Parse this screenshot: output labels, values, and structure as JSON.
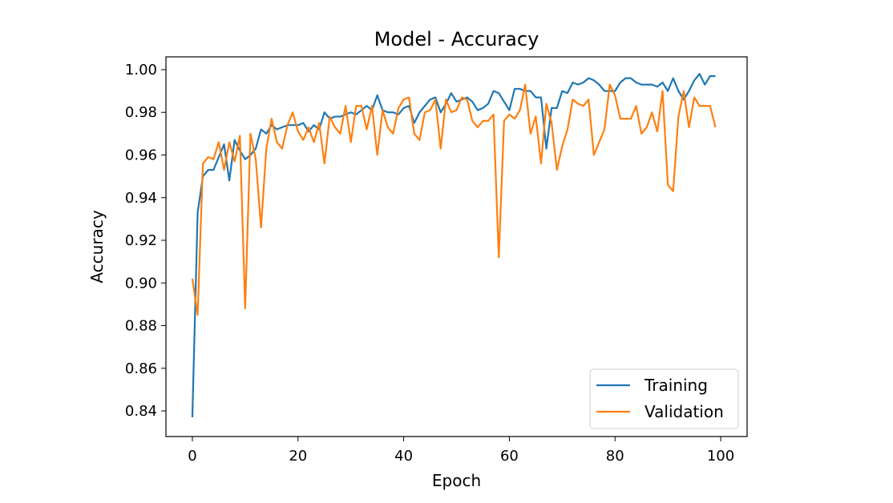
{
  "chart_data": {
    "type": "line",
    "title": "Model - Accuracy",
    "xlabel": "Epoch",
    "ylabel": "Accuracy",
    "xlim": [
      -5,
      105
    ],
    "ylim": [
      0.828,
      1.006
    ],
    "xticks": [
      0,
      20,
      40,
      60,
      80,
      100
    ],
    "yticks": [
      0.84,
      0.86,
      0.88,
      0.9,
      0.92,
      0.94,
      0.96,
      0.98,
      1.0
    ],
    "xtick_labels": [
      "0",
      "20",
      "40",
      "60",
      "80",
      "100"
    ],
    "ytick_labels": [
      "0.84",
      "0.86",
      "0.88",
      "0.90",
      "0.92",
      "0.94",
      "0.96",
      "0.98",
      "1.00"
    ],
    "legend_position": "lower-right",
    "grid": false,
    "colors": {
      "Training": "#1f77b4",
      "Validation": "#ff7f0e"
    },
    "series": [
      {
        "name": "Training",
        "x": [
          0,
          1,
          2,
          3,
          4,
          5,
          6,
          7,
          8,
          9,
          10,
          11,
          12,
          13,
          14,
          15,
          16,
          17,
          18,
          19,
          20,
          21,
          22,
          23,
          24,
          25,
          26,
          27,
          28,
          29,
          30,
          31,
          32,
          33,
          34,
          35,
          36,
          37,
          38,
          39,
          40,
          41,
          42,
          43,
          44,
          45,
          46,
          47,
          48,
          49,
          50,
          51,
          52,
          53,
          54,
          55,
          56,
          57,
          58,
          59,
          60,
          61,
          62,
          63,
          64,
          65,
          66,
          67,
          68,
          69,
          70,
          71,
          72,
          73,
          74,
          75,
          76,
          77,
          78,
          79,
          80,
          81,
          82,
          83,
          84,
          85,
          86,
          87,
          88,
          89,
          90,
          91,
          92,
          93,
          94,
          95,
          96,
          97,
          98,
          99
        ],
        "values": [
          0.837,
          0.933,
          0.95,
          0.953,
          0.953,
          0.959,
          0.965,
          0.948,
          0.967,
          0.962,
          0.958,
          0.96,
          0.963,
          0.972,
          0.97,
          0.974,
          0.972,
          0.973,
          0.974,
          0.974,
          0.974,
          0.975,
          0.971,
          0.974,
          0.972,
          0.98,
          0.977,
          0.978,
          0.978,
          0.979,
          0.98,
          0.979,
          0.981,
          0.983,
          0.981,
          0.988,
          0.981,
          0.98,
          0.98,
          0.979,
          0.982,
          0.983,
          0.975,
          0.98,
          0.983,
          0.986,
          0.987,
          0.98,
          0.984,
          0.989,
          0.985,
          0.986,
          0.987,
          0.985,
          0.981,
          0.982,
          0.984,
          0.99,
          0.989,
          0.985,
          0.981,
          0.991,
          0.991,
          0.99,
          0.99,
          0.987,
          0.987,
          0.963,
          0.982,
          0.982,
          0.99,
          0.989,
          0.994,
          0.993,
          0.994,
          0.996,
          0.995,
          0.993,
          0.99,
          0.99,
          0.99,
          0.994,
          0.996,
          0.996,
          0.994,
          0.993,
          0.993,
          0.993,
          0.992,
          0.994,
          0.99,
          0.996,
          0.99,
          0.986,
          0.99,
          0.995,
          0.998,
          0.993,
          0.997,
          0.997
        ]
      },
      {
        "name": "Validation",
        "x": [
          0,
          1,
          2,
          3,
          4,
          5,
          6,
          7,
          8,
          9,
          10,
          11,
          12,
          13,
          14,
          15,
          16,
          17,
          18,
          19,
          20,
          21,
          22,
          23,
          24,
          25,
          26,
          27,
          28,
          29,
          30,
          31,
          32,
          33,
          34,
          35,
          36,
          37,
          38,
          39,
          40,
          41,
          42,
          43,
          44,
          45,
          46,
          47,
          48,
          49,
          50,
          51,
          52,
          53,
          54,
          55,
          56,
          57,
          58,
          59,
          60,
          61,
          62,
          63,
          64,
          65,
          66,
          67,
          68,
          69,
          70,
          71,
          72,
          73,
          74,
          75,
          76,
          77,
          78,
          79,
          80,
          81,
          82,
          83,
          84,
          85,
          86,
          87,
          88,
          89,
          90,
          91,
          92,
          93,
          94,
          95,
          96,
          97,
          98,
          99
        ],
        "values": [
          0.902,
          0.885,
          0.956,
          0.959,
          0.958,
          0.966,
          0.953,
          0.966,
          0.957,
          0.969,
          0.888,
          0.97,
          0.958,
          0.926,
          0.963,
          0.977,
          0.966,
          0.963,
          0.974,
          0.98,
          0.971,
          0.967,
          0.973,
          0.966,
          0.975,
          0.956,
          0.978,
          0.973,
          0.97,
          0.983,
          0.966,
          0.983,
          0.983,
          0.972,
          0.983,
          0.96,
          0.981,
          0.973,
          0.97,
          0.982,
          0.986,
          0.987,
          0.97,
          0.967,
          0.98,
          0.981,
          0.986,
          0.963,
          0.986,
          0.98,
          0.981,
          0.987,
          0.986,
          0.976,
          0.973,
          0.976,
          0.976,
          0.979,
          0.912,
          0.976,
          0.979,
          0.977,
          0.981,
          0.993,
          0.97,
          0.978,
          0.956,
          0.984,
          0.975,
          0.953,
          0.964,
          0.972,
          0.986,
          0.984,
          0.983,
          0.986,
          0.96,
          0.966,
          0.972,
          0.993,
          0.988,
          0.977,
          0.977,
          0.977,
          0.983,
          0.97,
          0.973,
          0.98,
          0.971,
          0.99,
          0.946,
          0.943,
          0.978,
          0.99,
          0.973,
          0.987,
          0.983,
          0.983,
          0.983,
          0.973
        ]
      }
    ]
  }
}
